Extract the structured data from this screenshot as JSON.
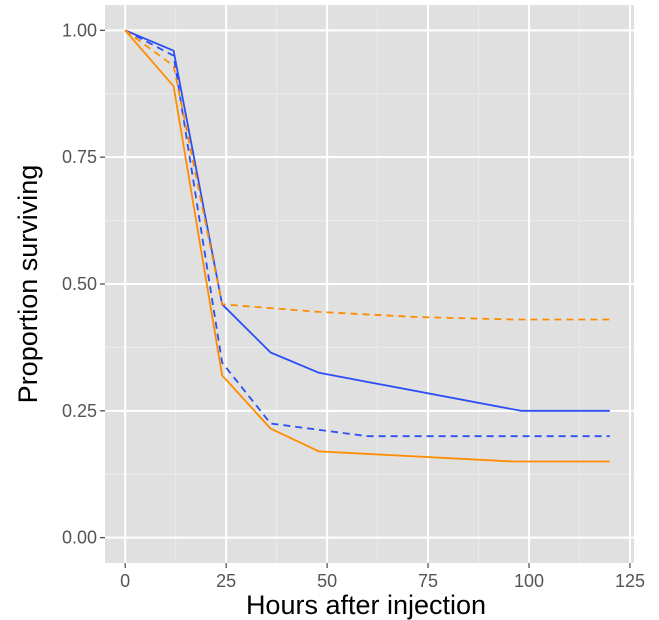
{
  "chart_data": {
    "type": "line",
    "title": "",
    "xlabel": "Hours after injection",
    "ylabel": "Proportion surviving",
    "xlim": [
      -5,
      126
    ],
    "ylim": [
      -0.05,
      1.05
    ],
    "xticks": [
      0,
      25,
      50,
      75,
      100,
      125
    ],
    "yticks": [
      0.0,
      0.25,
      0.5,
      0.75,
      1.0
    ],
    "xtick_labels": [
      "0",
      "25",
      "50",
      "75",
      "100",
      "125"
    ],
    "ytick_labels": [
      "0.00",
      "0.25",
      "0.50",
      "0.75",
      "1.00"
    ],
    "grid": true,
    "legend": "none",
    "background": "#e0e0e0",
    "series": [
      {
        "color": "#2b4ff2",
        "linestyle": "solid",
        "x": [
          0,
          12,
          24,
          36,
          48,
          98,
          120
        ],
        "y": [
          1.0,
          0.96,
          0.46,
          0.365,
          0.325,
          0.25,
          0.25
        ]
      },
      {
        "color": "#2b4ff2",
        "linestyle": "dashed",
        "x": [
          0,
          12,
          24,
          36,
          60,
          120
        ],
        "y": [
          1.0,
          0.95,
          0.345,
          0.225,
          0.2,
          0.2
        ]
      },
      {
        "color": "#ff8c00",
        "linestyle": "solid",
        "x": [
          0,
          12,
          24,
          36,
          48,
          96,
          120
        ],
        "y": [
          1.0,
          0.89,
          0.32,
          0.215,
          0.17,
          0.15,
          0.15
        ]
      },
      {
        "color": "#ff8c00",
        "linestyle": "dashed",
        "x": [
          0,
          12,
          24,
          48,
          72,
          96,
          120
        ],
        "y": [
          1.0,
          0.93,
          0.46,
          0.445,
          0.435,
          0.43,
          0.43
        ]
      }
    ]
  }
}
